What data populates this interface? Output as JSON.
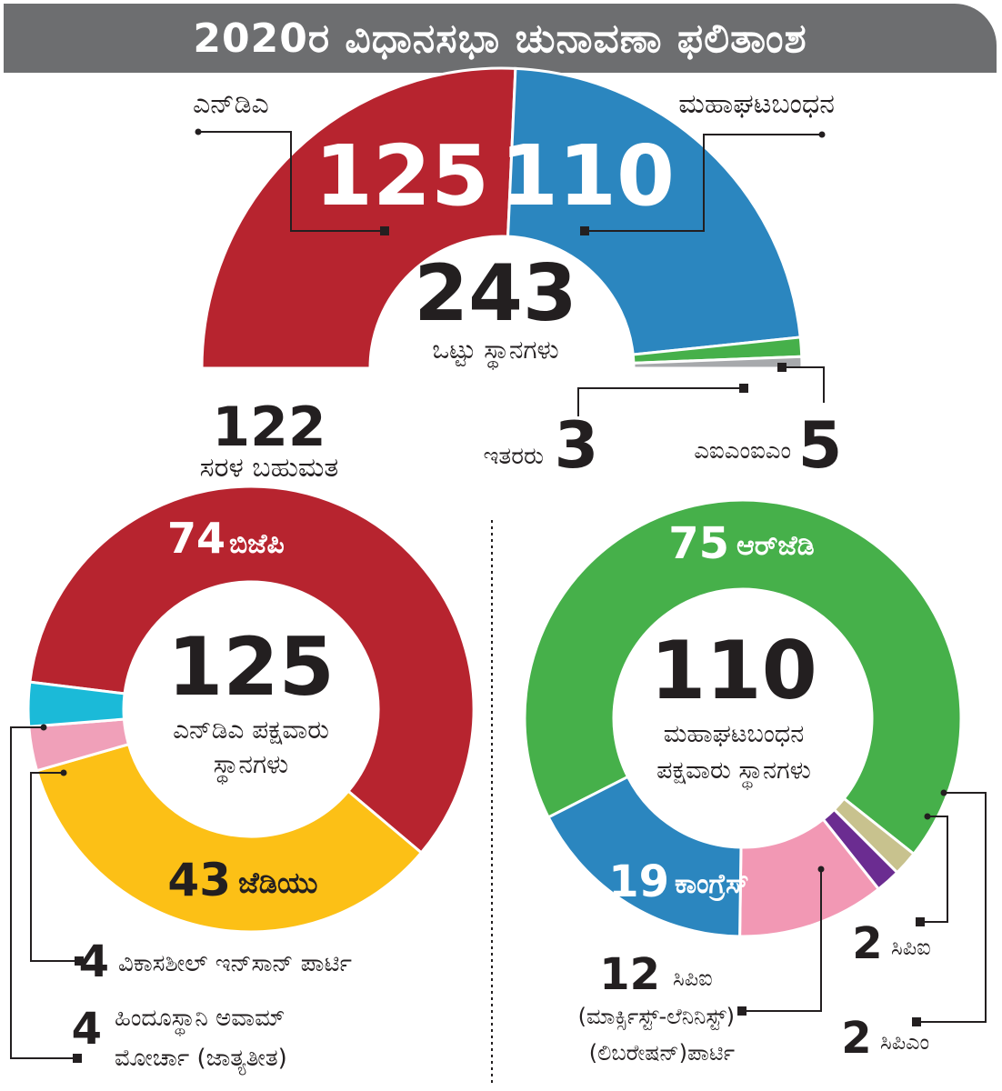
{
  "header": {
    "title": "2020ರ ವಿಧಾನಸಭಾ ಚುನಾವಣಾ ಫಲಿತಾಂಶ"
  },
  "colors": {
    "nda": "#b7242f",
    "mgb": "#2b86bf",
    "aimim": "#46b04a",
    "others": "#a7a9ac",
    "bjp": "#b7242f",
    "jdu": "#fcc016",
    "vip": "#1bbad8",
    "ham": "#f0a0b9",
    "rjd": "#46b04a",
    "congress": "#2b86bf",
    "cpiml": "#f298b4",
    "cpi": "#6b2c91",
    "cpim": "#c8c28e"
  },
  "chart_data": [
    {
      "type": "pie",
      "subtype": "half-donut",
      "center_value": "243",
      "center_label": "ಒಟ್ಟು ಸ್ಥಾನಗಳು",
      "majority_value": "122",
      "majority_label": "ಸರಳ ಬಹುಮತ",
      "slices": [
        {
          "name": "ಎನ್‌ಡಿಎ",
          "value": 125,
          "color_key": "nda"
        },
        {
          "name": "ಮಹಾಘಟಬಂಧನ",
          "value": 110,
          "color_key": "mgb"
        },
        {
          "name": "ಎಐಎಂಐಎಂ",
          "value": 5,
          "color_key": "aimim"
        },
        {
          "name": "ಇತರರು",
          "value": 3,
          "color_key": "others"
        }
      ]
    },
    {
      "type": "pie",
      "subtype": "donut",
      "center_value": "125",
      "center_label_1": "ಎನ್‌ಡಿಎ ಪಕ್ಷವಾರು",
      "center_label_2": "ಸ್ಥಾನಗಳು",
      "slices": [
        {
          "name": "ಬಿಜೆಪಿ",
          "value": 74,
          "color_key": "bjp"
        },
        {
          "name": "ಜೆಡಿಯು",
          "value": 43,
          "color_key": "jdu"
        },
        {
          "name": "ಹಿಂದೂಸ್ಥಾನಿ ಅವಾಮ್ ಮೋರ್ಚಾ (ಜಾತ್ಯತೀತ)",
          "value": 4,
          "color_key": "ham"
        },
        {
          "name": "ವಿಕಾಸಶೀಲ್ ಇನ್‌ಸಾನ್ ಪಾರ್ಟಿ",
          "value": 4,
          "color_key": "vip"
        }
      ]
    },
    {
      "type": "pie",
      "subtype": "donut",
      "center_value": "110",
      "center_label_1": "ಮಹಾಘಟಬಂಧನ",
      "center_label_2": "ಪಕ್ಷವಾರು ಸ್ಥಾನಗಳು",
      "slices": [
        {
          "name": "ಆರ್‌ಜೆಡಿ",
          "value": 75,
          "color_key": "rjd"
        },
        {
          "name": "ಸಿಪಿಎಂ",
          "value": 2,
          "color_key": "cpim"
        },
        {
          "name": "ಸಿಪಿಐ",
          "value": 2,
          "color_key": "cpi"
        },
        {
          "name": "ಸಿಪಿಐ (ಮಾರ್ಕ್ಸಿಸ್ಟ್-ಲೆನಿನಿಸ್ಟ್) (ಲಿಬರೇಷನ್)ಪಾರ್ಟಿ",
          "value": 12,
          "color_key": "cpiml"
        },
        {
          "name": "ಕಾಂಗ್ರೆಸ್",
          "value": 19,
          "color_key": "congress"
        }
      ]
    }
  ],
  "labels": {
    "nda": {
      "value": "125",
      "name": "ಎನ್‌ಡಿಎ"
    },
    "mgb": {
      "value": "110",
      "name": "ಮಹಾಘಟಬಂಧನ"
    },
    "others": {
      "value": "3",
      "name": "ಇತರರು"
    },
    "aimim": {
      "value": "5",
      "name": "ಎಐಎಂಐಎಂ"
    },
    "bjp": {
      "value": "74",
      "name": "ಬಿಜೆಪಿ"
    },
    "jdu": {
      "value": "43",
      "name": "ಜೆಡಿಯು"
    },
    "vip": {
      "value": "4",
      "name": "ವಿಕಾಸಶೀಲ್ ಇನ್‌ಸಾನ್ ಪಾರ್ಟಿ"
    },
    "ham": {
      "value": "4",
      "name_1": "ಹಿಂದೂಸ್ಥಾನಿ ಅವಾಮ್",
      "name_2": "ಮೋರ್ಚಾ (ಜಾತ್ಯತೀತ)"
    },
    "rjd": {
      "value": "75",
      "name": "ಆರ್‌ಜೆಡಿ"
    },
    "congress": {
      "value": "19",
      "name": "ಕಾಂಗ್ರೆಸ್"
    },
    "cpiml": {
      "value": "12",
      "name_1": "ಸಿಪಿಐ",
      "name_2": "(ಮಾರ್ಕ್ಸಿಸ್ಟ್-ಲೆನಿನಿಸ್ಟ್)",
      "name_3": "(ಲಿಬರೇಷನ್)ಪಾರ್ಟಿ"
    },
    "cpi": {
      "value": "2",
      "name": "ಸಿಪಿಐ"
    },
    "cpim": {
      "value": "2",
      "name": "ಸಿಪಿಎಂ"
    }
  }
}
